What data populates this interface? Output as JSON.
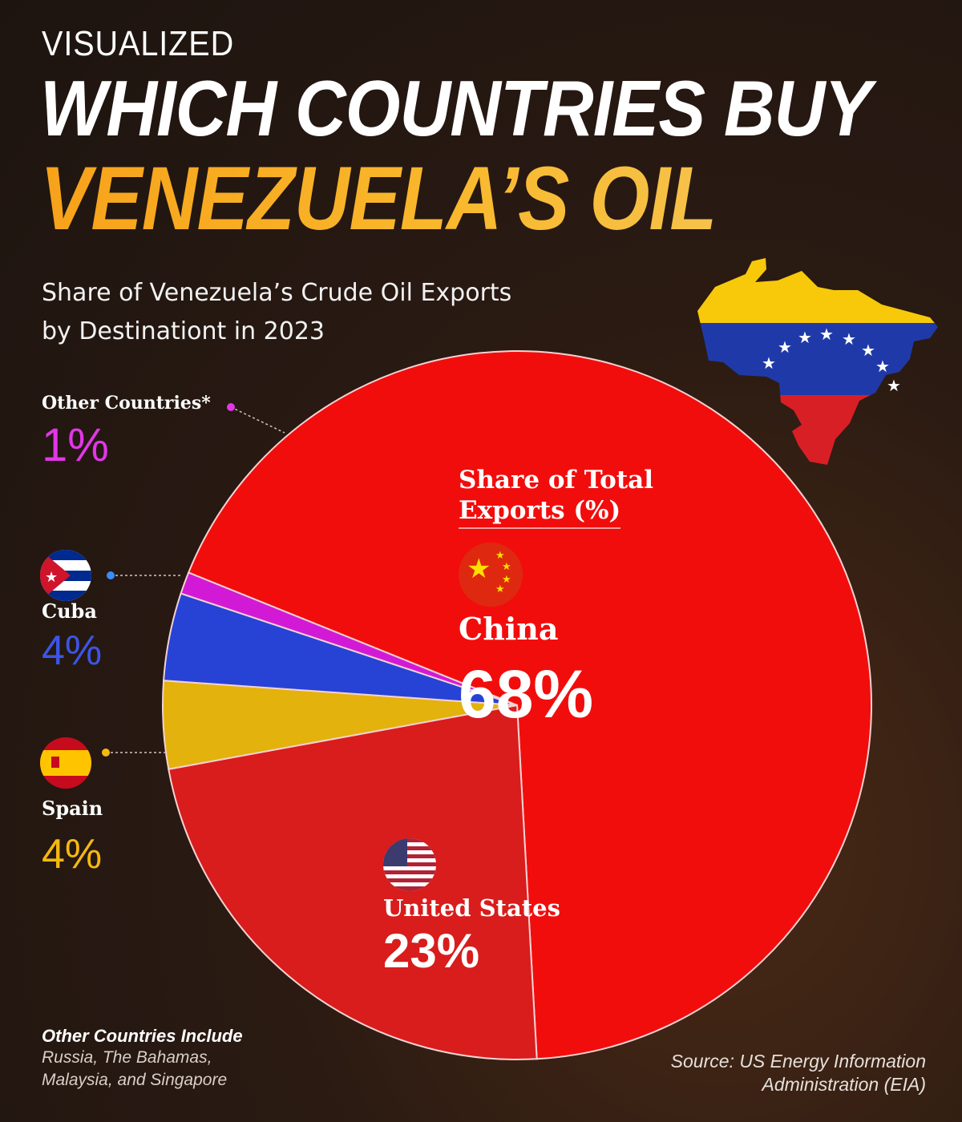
{
  "header": {
    "eyebrow": "VISUALIZED",
    "title_line1": "WHICH COUNTRIES BUY",
    "title_line2": "VENEZUELA’S OIL",
    "subtitle_line1": "Share of Venezuela’s Crude Oil Exports",
    "subtitle_line2": "by Destinationt in 2023"
  },
  "chart_data": {
    "type": "pie",
    "title": "Share of Total Exports (%)",
    "unit": "%",
    "series": [
      {
        "name": "China",
        "value": 68,
        "label": "68%",
        "color": "#f20d0d"
      },
      {
        "name": "United States",
        "value": 23,
        "label": "23%",
        "color": "#d91c1c"
      },
      {
        "name": "Spain",
        "value": 4,
        "label": "4%",
        "color": "#e3b20c"
      },
      {
        "name": "Cuba",
        "value": 4,
        "label": "4%",
        "color": "#2743d6"
      },
      {
        "name": "Other Countries*",
        "value": 1,
        "label": "1%",
        "color": "#d21ad6"
      }
    ]
  },
  "labels": {
    "other": {
      "name": "Other Countries*",
      "pct": "1%",
      "color": "#e236e8"
    },
    "cuba": {
      "name": "Cuba",
      "pct": "4%",
      "color": "#3b55e8"
    },
    "spain": {
      "name": "Spain",
      "pct": "4%",
      "color": "#f5b80f"
    },
    "china": {
      "name": "China",
      "pct": "68%"
    },
    "us": {
      "name": "United States",
      "pct": "23%"
    },
    "chart_title_line1": "Share of Total",
    "chart_title_line2": "Exports (%)"
  },
  "footnote": {
    "title": "Other Countries Include",
    "body_line1": "Russia, The Bahamas,",
    "body_line2": "Malaysia, and Singapore"
  },
  "source": {
    "line1": "Source: US Energy Information",
    "line2": "Administration (EIA)"
  },
  "icons": [
    "venezuela-map-icon",
    "china-flag-icon",
    "usa-flag-icon",
    "cuba-flag-icon",
    "spain-flag-icon"
  ]
}
